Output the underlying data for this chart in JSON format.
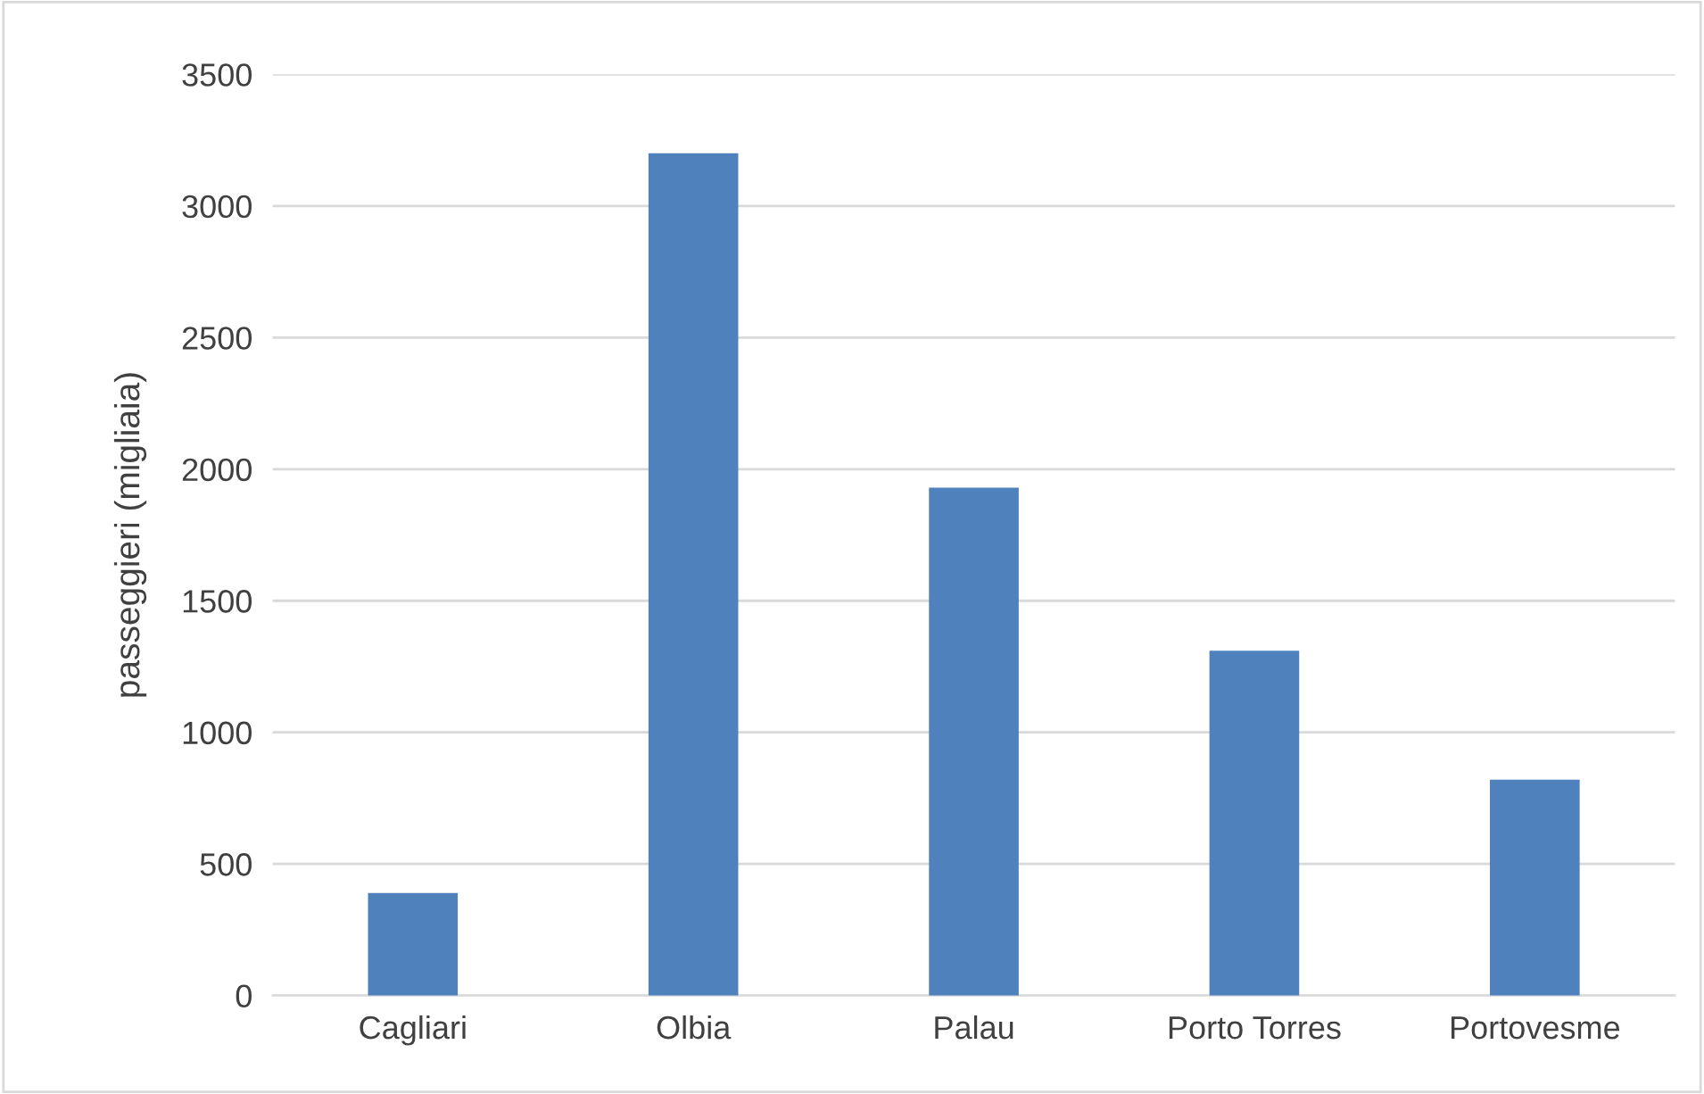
{
  "chart_data": {
    "type": "bar",
    "ylabel": "passeggieri (migliaia)",
    "categories": [
      "Cagliari",
      "Olbia",
      "Palau",
      "Porto Torres",
      "Portovesme"
    ],
    "values": [
      390,
      3200,
      1930,
      1310,
      820
    ],
    "color": "#4f81bd",
    "ylim": [
      0,
      3500
    ],
    "yticks": [
      0,
      500,
      1000,
      1500,
      2000,
      2500,
      3000,
      3500
    ],
    "grid": "y"
  }
}
